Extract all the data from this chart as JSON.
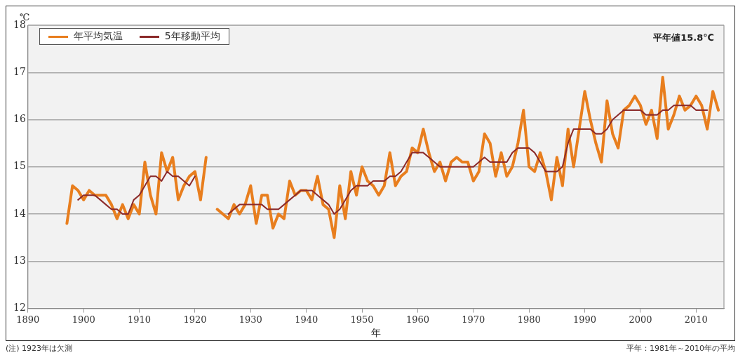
{
  "chart_data": {
    "type": "line",
    "xlabel": "年",
    "ylabel": "℃",
    "x": [
      1897,
      1898,
      1899,
      1900,
      1901,
      1902,
      1903,
      1904,
      1905,
      1906,
      1907,
      1908,
      1909,
      1910,
      1911,
      1912,
      1913,
      1914,
      1915,
      1916,
      1917,
      1918,
      1919,
      1920,
      1921,
      1922,
      1923,
      1924,
      1925,
      1926,
      1927,
      1928,
      1929,
      1930,
      1931,
      1932,
      1933,
      1934,
      1935,
      1936,
      1937,
      1938,
      1939,
      1940,
      1941,
      1942,
      1943,
      1944,
      1945,
      1946,
      1947,
      1948,
      1949,
      1950,
      1951,
      1952,
      1953,
      1954,
      1955,
      1956,
      1957,
      1958,
      1959,
      1960,
      1961,
      1962,
      1963,
      1964,
      1965,
      1966,
      1967,
      1968,
      1969,
      1970,
      1971,
      1972,
      1973,
      1974,
      1975,
      1976,
      1977,
      1978,
      1979,
      1980,
      1981,
      1982,
      1983,
      1984,
      1985,
      1986,
      1987,
      1988,
      1989,
      1990,
      1991,
      1992,
      1993,
      1994,
      1995,
      1996,
      1997,
      1998,
      1999,
      2000,
      2001,
      2002,
      2003,
      2004,
      2005,
      2006,
      2007,
      2008,
      2009,
      2010,
      2011,
      2012,
      2013,
      2014
    ],
    "series": [
      {
        "name": "年平均気温",
        "color": "#e87e1e",
        "values": [
          13.8,
          14.6,
          14.5,
          14.3,
          14.5,
          14.4,
          14.4,
          14.4,
          14.2,
          13.9,
          14.2,
          13.9,
          14.2,
          14.0,
          15.1,
          14.4,
          14.0,
          15.3,
          14.9,
          15.2,
          14.3,
          14.6,
          14.8,
          14.9,
          14.3,
          15.2,
          null,
          14.1,
          14.0,
          13.9,
          14.2,
          14.0,
          14.2,
          14.6,
          13.8,
          14.4,
          14.4,
          13.7,
          14.0,
          13.9,
          14.7,
          14.4,
          14.5,
          14.5,
          14.3,
          14.8,
          14.2,
          14.1,
          13.5,
          14.6,
          13.9,
          14.9,
          14.4,
          15.0,
          14.7,
          14.6,
          14.4,
          14.6,
          15.3,
          14.6,
          14.8,
          14.9,
          15.4,
          15.3,
          15.8,
          15.3,
          14.9,
          15.1,
          14.7,
          15.1,
          15.2,
          15.1,
          15.1,
          14.7,
          14.9,
          15.7,
          15.5,
          14.8,
          15.3,
          14.8,
          15.0,
          15.5,
          16.2,
          15.0,
          14.9,
          15.3,
          14.9,
          14.3,
          15.2,
          14.6,
          15.8,
          15.0,
          15.8,
          16.6,
          16.0,
          15.5,
          15.1,
          16.4,
          15.7,
          15.4,
          16.2,
          16.3,
          16.5,
          16.3,
          15.9,
          16.2,
          15.6,
          16.9,
          15.8,
          16.1,
          16.5,
          16.2,
          16.3,
          16.5,
          16.3,
          15.8,
          16.6,
          16.2
        ]
      },
      {
        "name": "5年移動平均",
        "color": "#8b2a2a",
        "values": [
          null,
          null,
          14.3,
          14.4,
          14.4,
          14.4,
          14.3,
          14.2,
          14.1,
          14.1,
          14.0,
          14.0,
          14.3,
          14.4,
          14.6,
          14.8,
          14.8,
          14.7,
          14.9,
          14.8,
          14.8,
          14.7,
          14.6,
          14.8,
          null,
          null,
          null,
          null,
          null,
          14.0,
          14.1,
          14.2,
          14.2,
          14.2,
          14.2,
          14.2,
          14.1,
          14.1,
          14.1,
          14.2,
          14.3,
          14.4,
          14.5,
          14.5,
          14.5,
          14.4,
          14.3,
          14.2,
          14.0,
          14.1,
          14.3,
          14.5,
          14.6,
          14.6,
          14.6,
          14.7,
          14.7,
          14.7,
          14.8,
          14.8,
          14.9,
          15.1,
          15.3,
          15.3,
          15.3,
          15.2,
          15.1,
          15.0,
          15.0,
          15.0,
          15.0,
          15.0,
          15.0,
          15.0,
          15.1,
          15.2,
          15.1,
          15.1,
          15.1,
          15.1,
          15.3,
          15.4,
          15.4,
          15.4,
          15.3,
          15.1,
          14.9,
          14.9,
          14.9,
          15.0,
          15.5,
          15.8,
          15.8,
          15.8,
          15.8,
          15.7,
          15.7,
          15.8,
          16.0,
          16.1,
          16.2,
          16.2,
          16.2,
          16.2,
          16.1,
          16.1,
          16.1,
          16.2,
          16.2,
          16.3,
          16.3,
          16.3,
          16.3,
          16.2,
          16.2,
          16.2,
          null,
          null
        ]
      }
    ],
    "xlim": [
      1890,
      2015
    ],
    "xticks": [
      1890,
      1900,
      1910,
      1920,
      1930,
      1940,
      1950,
      1960,
      1970,
      1980,
      1990,
      2000,
      2010
    ],
    "ylim": [
      12,
      18
    ],
    "yticks": [
      12,
      13,
      14,
      15,
      16,
      17,
      18
    ],
    "grid": "y",
    "legend": "top left",
    "marker": "none",
    "line_style": "solid",
    "annotations": [
      "平年値15.8℃",
      "(注) 1923年は欠測",
      "平年：1981年～2010年の平均"
    ]
  }
}
